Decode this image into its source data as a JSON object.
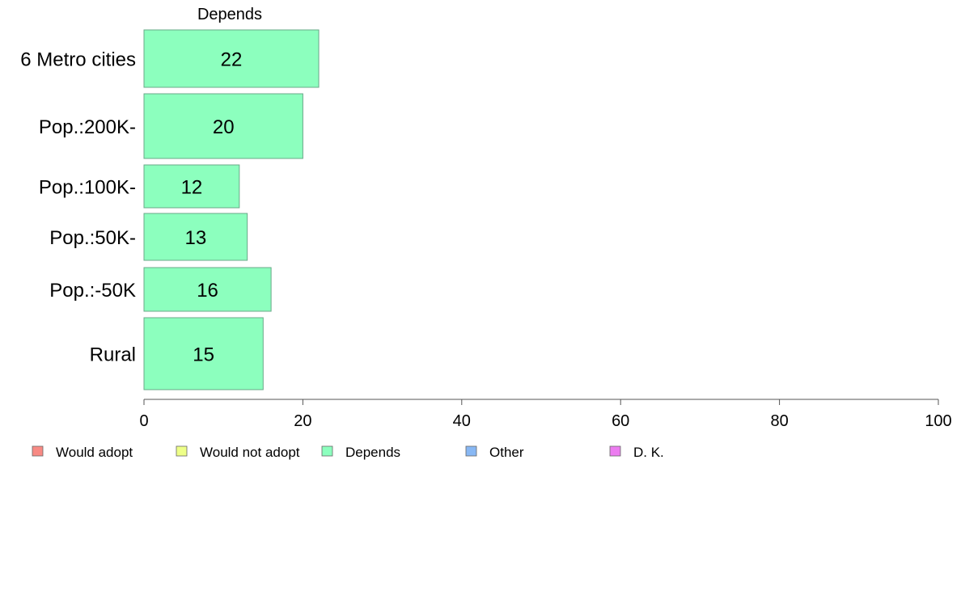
{
  "chart_data": {
    "type": "bar",
    "orientation": "horizontal",
    "title": "Depends",
    "categories": [
      "6 Metro cities",
      "Pop.:200K-",
      "Pop.:100K-",
      "Pop.:50K-",
      "Pop.:-50K",
      "Rural"
    ],
    "series": [
      {
        "name": "Depends",
        "values": [
          22,
          20,
          12,
          13,
          16,
          15
        ],
        "color": "#8cffbe"
      }
    ],
    "xlim": [
      0,
      100
    ],
    "xticks": [
      0,
      20,
      40,
      60,
      80,
      100
    ],
    "grid": false,
    "legend": {
      "placement": "bottom",
      "items": [
        {
          "label": "Would adopt",
          "color": "#f88a84"
        },
        {
          "label": "Would not adopt",
          "color": "#eeff88"
        },
        {
          "label": "Depends",
          "color": "#8cffbe"
        },
        {
          "label": "Other",
          "color": "#88b8f4"
        },
        {
          "label": "D. K.",
          "color": "#ec7cf0"
        }
      ]
    }
  }
}
